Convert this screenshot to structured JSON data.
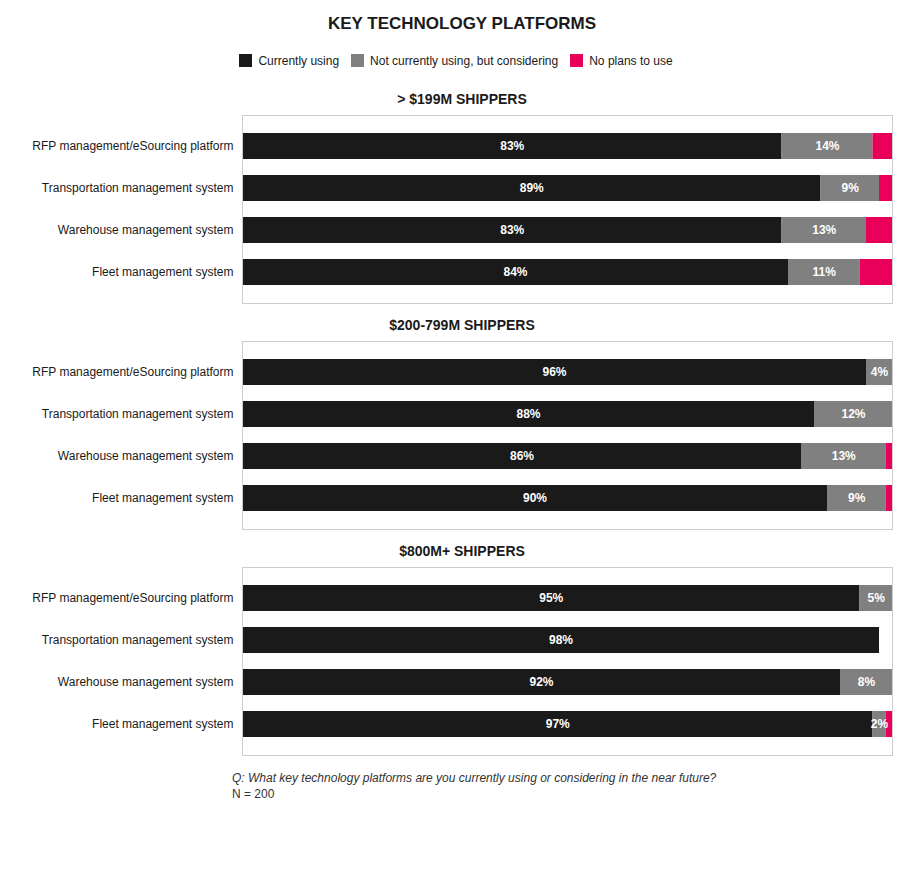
{
  "chart_data": [
    {
      "type": "bar",
      "orientation": "horizontal",
      "stacked": true,
      "data_labels": true,
      "title": "KEY TECHNOLOGY PLATFORMS",
      "subtitle": "> $199M SHIPPERS",
      "legend": "top",
      "categories": [
        "RFP management/eSourcing platform",
        "Transportation management system",
        "Warehouse management system",
        "Fleet management system"
      ],
      "series": [
        {
          "name": "Currently using",
          "color": "#1a1a1a",
          "values": [
            83,
            89,
            83,
            84
          ],
          "value_labels": [
            "83%",
            "89%",
            "83%",
            "84%"
          ]
        },
        {
          "name": "Not currently using, but considering",
          "color": "#808080",
          "values": [
            14,
            9,
            13,
            11
          ],
          "value_labels": [
            "14%",
            "9%",
            "13%",
            "11%"
          ]
        },
        {
          "name": "No plans to use",
          "color": "#e8005a",
          "values": [
            3,
            2,
            4,
            5
          ]
        }
      ],
      "xlim": [
        0,
        100
      ],
      "grid": false,
      "tick_labels": "y"
    },
    {
      "type": "bar",
      "orientation": "horizontal",
      "stacked": true,
      "data_labels": true,
      "subtitle": "$200-799M SHIPPERS",
      "categories": [
        "RFP management/eSourcing platform",
        "Transportation management system",
        "Warehouse management system",
        "Fleet management system"
      ],
      "series": [
        {
          "name": "Currently using",
          "color": "#1a1a1a",
          "values": [
            96,
            88,
            86,
            90
          ],
          "value_labels": [
            "96%",
            "88%",
            "86%",
            "90%"
          ]
        },
        {
          "name": "Not currently using, but considering",
          "color": "#808080",
          "values": [
            4,
            12,
            13,
            9
          ],
          "value_labels": [
            "4%",
            "12%",
            "13%",
            "9%"
          ]
        },
        {
          "name": "No plans to use",
          "color": "#e8005a",
          "values": [
            0,
            0,
            1,
            1
          ]
        }
      ],
      "xlim": [
        0,
        100
      ],
      "grid": false,
      "tick_labels": "y"
    },
    {
      "type": "bar",
      "orientation": "horizontal",
      "stacked": true,
      "data_labels": true,
      "subtitle": "$800M+ SHIPPERS",
      "categories": [
        "RFP management/eSourcing platform",
        "Transportation management system",
        "Warehouse management system",
        "Fleet management system"
      ],
      "series": [
        {
          "name": "Currently using",
          "color": "#1a1a1a",
          "values": [
            95,
            98,
            92,
            97
          ],
          "value_labels": [
            "95%",
            "98%",
            "92%",
            "97%"
          ]
        },
        {
          "name": "Not currently using, but considering",
          "color": "#808080",
          "values": [
            5,
            0,
            8,
            2
          ],
          "value_labels": [
            "5%",
            null,
            "8%",
            "2%"
          ]
        },
        {
          "name": "No plans to use",
          "color": "#e8005a",
          "values": [
            0,
            0,
            0,
            1
          ]
        }
      ],
      "xlim": [
        0,
        100
      ],
      "grid": false,
      "tick_labels": "y",
      "annotations": [
        "Q: What key technology platforms are you currently using or considering in the near future?",
        "N = 200"
      ]
    }
  ]
}
